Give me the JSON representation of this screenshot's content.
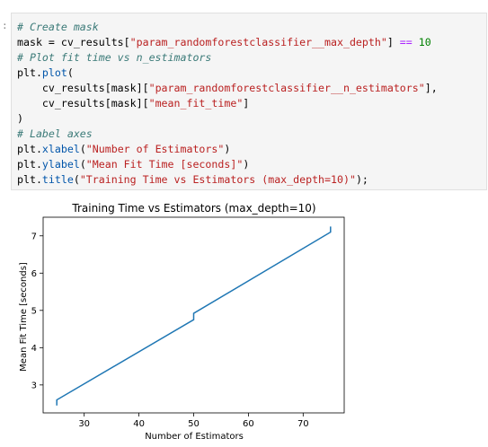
{
  "notebook": {
    "prompt": ":",
    "code_lines": [
      "# Create mask",
      "mask = cv_results[\"param_randomforestclassifier__max_depth\"] == 10",
      "# Plot fit time vs n_estimators",
      "plt.plot(",
      "    cv_results[mask][\"param_randomforestclassifier__n_estimators\"],",
      "    cv_results[mask][\"mean_fit_time\"]",
      ")",
      "# Label axes",
      "plt.xlabel(\"Number of Estimators\")",
      "plt.ylabel(\"Mean Fit Time [seconds]\")",
      "plt.title(\"Training Time vs Estimators (max_depth=10)\");"
    ]
  },
  "chart_data": {
    "type": "line",
    "title": "Training Time vs Estimators (max_depth=10)",
    "xlabel": "Number of Estimators",
    "ylabel": "Mean Fit Time [seconds]",
    "xlim": [
      22.5,
      77.5
    ],
    "ylim": [
      2.25,
      7.5
    ],
    "xticks": [
      30,
      40,
      50,
      60,
      70
    ],
    "yticks": [
      3,
      4,
      5,
      6,
      7
    ],
    "grid": false,
    "color": "#1f77b4",
    "x": [
      25,
      25,
      50,
      50,
      75,
      75
    ],
    "y": [
      2.45,
      2.6,
      4.75,
      4.92,
      7.1,
      7.25
    ]
  }
}
